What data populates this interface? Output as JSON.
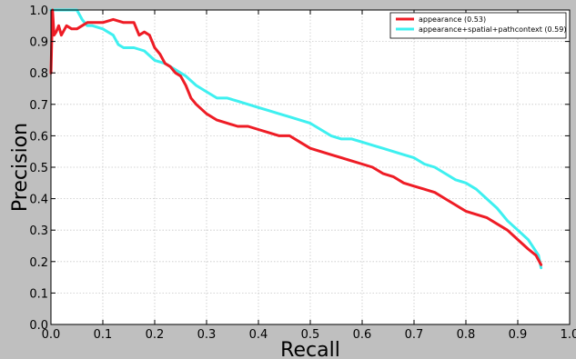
{
  "chart_data": {
    "type": "line",
    "title": "",
    "xlabel": "Recall",
    "ylabel": "Precision",
    "xlim": [
      0.0,
      1.0
    ],
    "ylim": [
      0.0,
      1.0
    ],
    "xticks": [
      "0.0",
      "0.1",
      "0.2",
      "0.3",
      "0.4",
      "0.5",
      "0.6",
      "0.7",
      "0.8",
      "0.9",
      "1.0"
    ],
    "yticks": [
      "0.0",
      "0.1",
      "0.2",
      "0.3",
      "0.4",
      "0.5",
      "0.6",
      "0.7",
      "0.8",
      "0.9",
      "1.0"
    ],
    "grid": true,
    "legend_position": "top-right",
    "series": [
      {
        "name": "appearance (0.53)",
        "color": "#ee1c25",
        "x": [
          0.0,
          0.003,
          0.006,
          0.01,
          0.015,
          0.02,
          0.03,
          0.04,
          0.05,
          0.06,
          0.07,
          0.08,
          0.1,
          0.12,
          0.14,
          0.16,
          0.17,
          0.18,
          0.19,
          0.2,
          0.21,
          0.22,
          0.23,
          0.24,
          0.25,
          0.26,
          0.27,
          0.28,
          0.3,
          0.32,
          0.34,
          0.36,
          0.38,
          0.4,
          0.42,
          0.44,
          0.46,
          0.48,
          0.5,
          0.52,
          0.54,
          0.56,
          0.58,
          0.6,
          0.62,
          0.64,
          0.66,
          0.68,
          0.7,
          0.72,
          0.74,
          0.76,
          0.78,
          0.8,
          0.82,
          0.84,
          0.86,
          0.88,
          0.9,
          0.92,
          0.935,
          0.945
        ],
        "y": [
          0.8,
          1.0,
          0.92,
          0.93,
          0.95,
          0.92,
          0.95,
          0.94,
          0.94,
          0.95,
          0.96,
          0.96,
          0.96,
          0.97,
          0.96,
          0.96,
          0.92,
          0.93,
          0.92,
          0.88,
          0.86,
          0.83,
          0.82,
          0.8,
          0.79,
          0.76,
          0.72,
          0.7,
          0.67,
          0.65,
          0.64,
          0.63,
          0.63,
          0.62,
          0.61,
          0.6,
          0.6,
          0.58,
          0.56,
          0.55,
          0.54,
          0.53,
          0.52,
          0.51,
          0.5,
          0.48,
          0.47,
          0.45,
          0.44,
          0.43,
          0.42,
          0.4,
          0.38,
          0.36,
          0.35,
          0.34,
          0.32,
          0.3,
          0.27,
          0.24,
          0.22,
          0.19
        ]
      },
      {
        "name": "appearance+spatial+pathcontext (0.59)",
        "color": "#3ef0f0",
        "x": [
          0.0,
          0.02,
          0.04,
          0.05,
          0.06,
          0.07,
          0.08,
          0.1,
          0.12,
          0.13,
          0.14,
          0.16,
          0.18,
          0.2,
          0.22,
          0.24,
          0.26,
          0.28,
          0.3,
          0.32,
          0.34,
          0.36,
          0.38,
          0.4,
          0.42,
          0.44,
          0.46,
          0.48,
          0.5,
          0.52,
          0.54,
          0.56,
          0.58,
          0.6,
          0.62,
          0.64,
          0.66,
          0.68,
          0.7,
          0.72,
          0.74,
          0.76,
          0.78,
          0.8,
          0.82,
          0.84,
          0.86,
          0.88,
          0.9,
          0.92,
          0.94,
          0.945
        ],
        "y": [
          1.0,
          1.0,
          1.0,
          1.0,
          0.97,
          0.95,
          0.95,
          0.94,
          0.92,
          0.89,
          0.88,
          0.88,
          0.87,
          0.84,
          0.83,
          0.81,
          0.79,
          0.76,
          0.74,
          0.72,
          0.72,
          0.71,
          0.7,
          0.69,
          0.68,
          0.67,
          0.66,
          0.65,
          0.64,
          0.62,
          0.6,
          0.59,
          0.59,
          0.58,
          0.57,
          0.56,
          0.55,
          0.54,
          0.53,
          0.51,
          0.5,
          0.48,
          0.46,
          0.45,
          0.43,
          0.4,
          0.37,
          0.33,
          0.3,
          0.27,
          0.22,
          0.18
        ]
      }
    ]
  }
}
